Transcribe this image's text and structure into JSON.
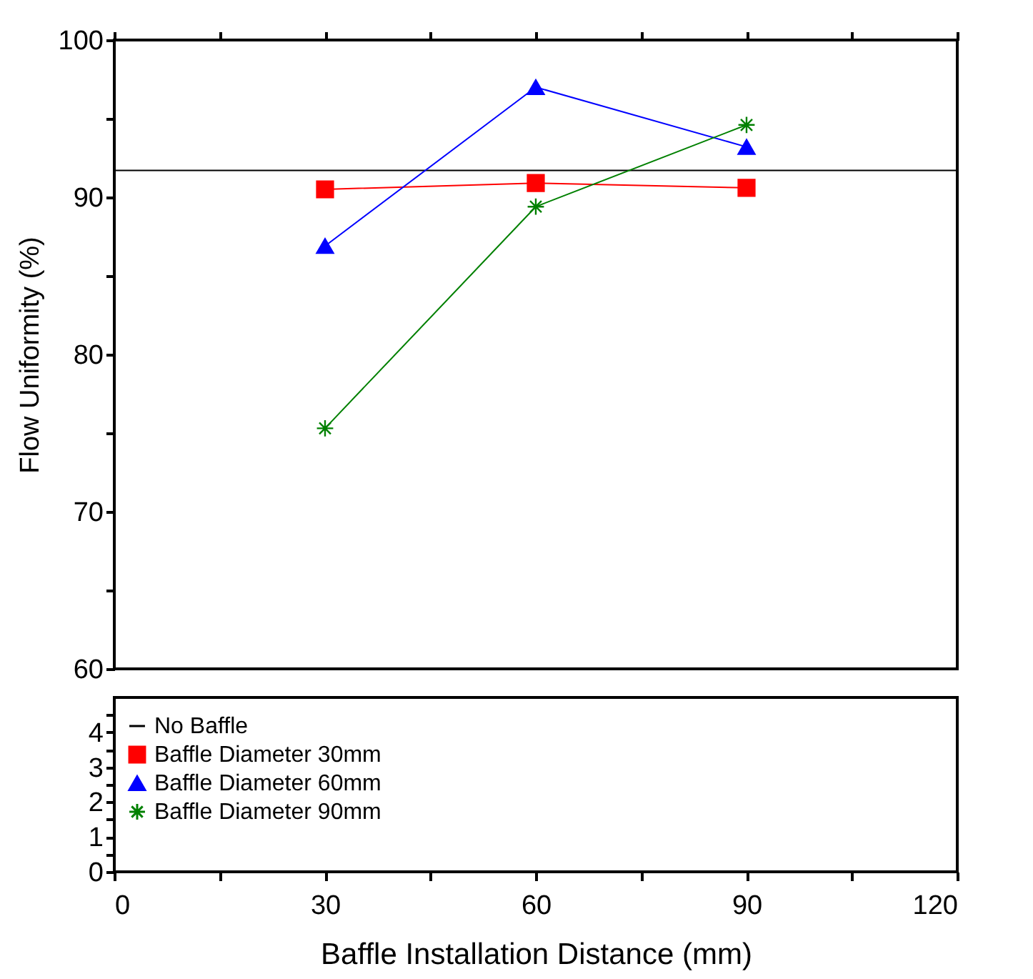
{
  "chart_data": [
    {
      "type": "line",
      "ylabel": "Flow Uniformity (%)",
      "xlim": [
        0,
        120
      ],
      "xticks": [
        {
          "value": 0,
          "label": null
        },
        {
          "value": 15,
          "label": null
        },
        {
          "value": 30,
          "label": null
        },
        {
          "value": 45,
          "label": null
        },
        {
          "value": 60,
          "label": null
        },
        {
          "value": 75,
          "label": null
        },
        {
          "value": 90,
          "label": null
        },
        {
          "value": 105,
          "label": null
        },
        {
          "value": 120,
          "label": null
        }
      ],
      "ylim": [
        60,
        100
      ],
      "yticks": [
        60,
        {
          "value": 65,
          "label": null
        },
        70,
        {
          "value": 75,
          "label": null
        },
        80,
        {
          "value": 85,
          "label": null
        },
        90,
        {
          "value": 95,
          "label": null
        },
        100
      ],
      "tick_labels": "y",
      "legend": "bottom left",
      "grid": false,
      "x": [
        30,
        60,
        90
      ],
      "series": [
        {
          "name": "No Baffle",
          "color": "#000000",
          "x": [
            0,
            120
          ],
          "values": [
            91.7,
            91.7
          ],
          "marker": "none"
        },
        {
          "name": "Baffle Diameter 30mm",
          "color": "#ff0000",
          "values": [
            90.5,
            90.9,
            90.6
          ],
          "marker": "square"
        },
        {
          "name": "Baffle Diameter 60mm",
          "color": "#0000ff",
          "values": [
            86.9,
            97.0,
            93.2
          ],
          "marker": "triangle"
        },
        {
          "name": "Baffle Diameter 90mm",
          "color": "#008000",
          "values": [
            75.3,
            89.4,
            94.6
          ],
          "marker": "cross"
        }
      ]
    },
    {
      "type": "line",
      "xlabel": "Baffle Installation Distance (mm)",
      "xlim": [
        0,
        120
      ],
      "xticks": [
        0,
        {
          "value": 15,
          "label": null
        },
        30,
        {
          "value": 45,
          "label": null
        },
        60,
        {
          "value": 75,
          "label": null
        },
        90,
        {
          "value": 105,
          "label": null
        },
        120
      ],
      "ylim": [
        0,
        5
      ],
      "yticks": [
        0,
        {
          "value": 0.5,
          "label": null
        },
        1,
        {
          "value": 1.5,
          "label": null
        },
        2,
        {
          "value": 2.5,
          "label": null
        },
        3,
        {
          "value": 3.5,
          "label": null
        },
        4,
        {
          "value": 4.5,
          "label": null
        }
      ]
    }
  ]
}
